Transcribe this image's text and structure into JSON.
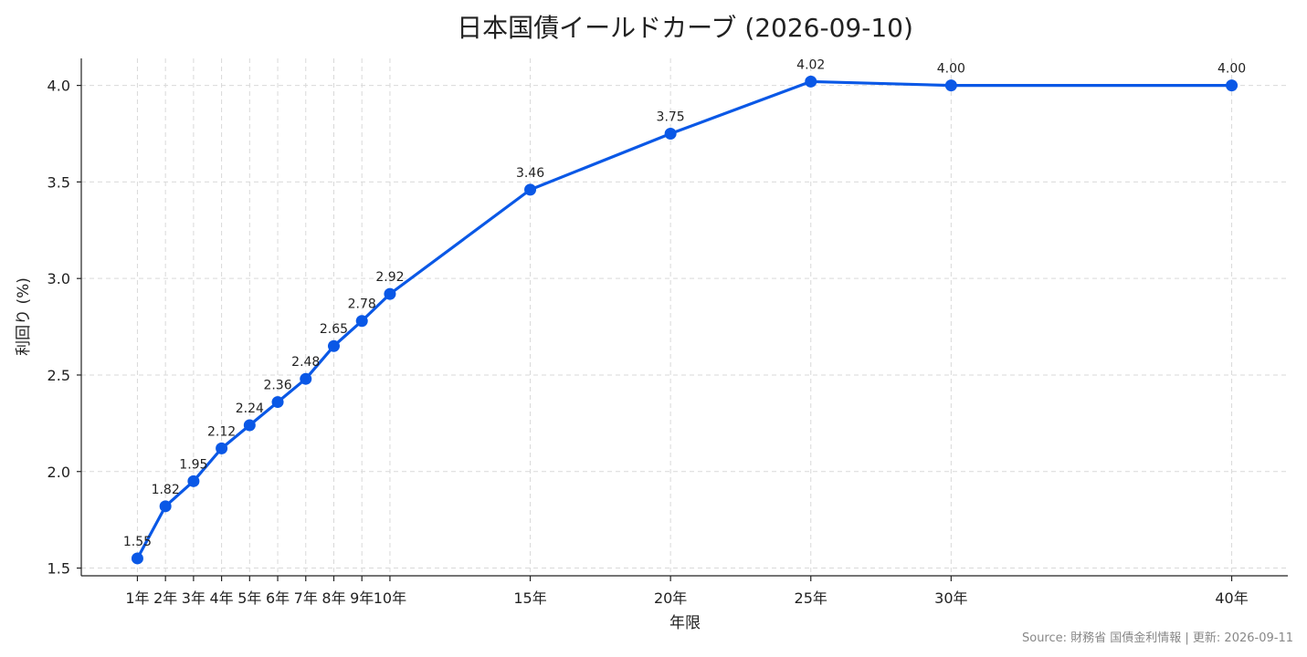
{
  "chart_data": {
    "type": "line",
    "title": "日本国債イールドカーブ (2026-09-10)",
    "xlabel": "年限",
    "ylabel": "利回り (%)",
    "x": [
      1,
      2,
      3,
      4,
      5,
      6,
      7,
      8,
      9,
      10,
      15,
      20,
      25,
      30,
      40
    ],
    "x_tick_labels": [
      "1年",
      "2年",
      "3年",
      "4年",
      "5年",
      "6年",
      "7年",
      "8年",
      "9年",
      "10年",
      "15年",
      "20年",
      "25年",
      "30年",
      "40年"
    ],
    "series": [
      {
        "values": [
          1.55,
          1.82,
          1.95,
          2.12,
          2.24,
          2.36,
          2.48,
          2.65,
          2.78,
          2.92,
          3.46,
          3.75,
          4.02,
          4.0,
          4.0
        ],
        "labels": [
          "1.55",
          "1.82",
          "1.95",
          "2.12",
          "2.24",
          "2.36",
          "2.48",
          "2.65",
          "2.78",
          "2.92",
          "3.46",
          "3.75",
          "4.02",
          "4.00",
          "4.00"
        ],
        "color": "#0a58e6"
      }
    ],
    "y_ticks": [
      1.5,
      2.0,
      2.5,
      3.0,
      3.5,
      4.0
    ],
    "y_tick_labels": [
      "1.5",
      "2.0",
      "2.5",
      "3.0",
      "3.5",
      "4.0"
    ],
    "ylim": [
      1.46,
      4.14
    ],
    "xlim": [
      -1,
      42
    ],
    "grid": true,
    "legend": "none",
    "source": "Source: 財務省 国債金利情報 | 更新: 2026-09-11"
  }
}
